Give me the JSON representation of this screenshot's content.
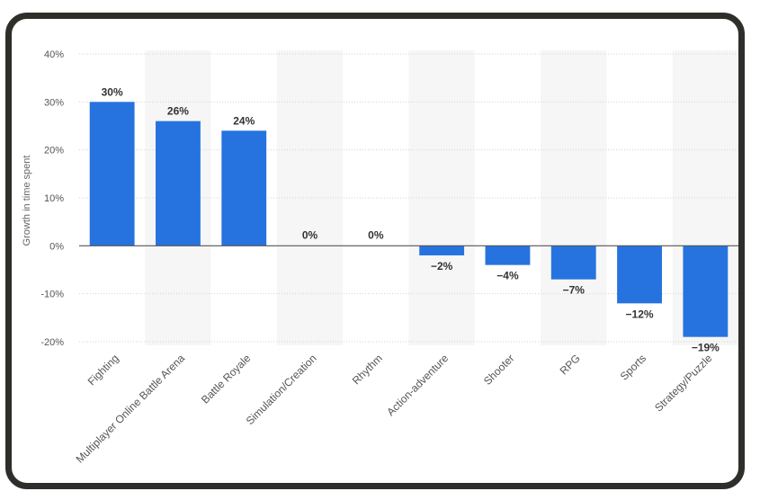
{
  "chart_data": {
    "type": "bar",
    "title": "",
    "xlabel": "",
    "ylabel": "Growth in time spent",
    "unit": "%",
    "ylim": [
      -20,
      40
    ],
    "yticks": [
      40,
      30,
      20,
      10,
      0,
      -10,
      -20
    ],
    "ytick_labels": [
      "40%",
      "30%",
      "20%",
      "10%",
      "0%",
      "-10%",
      "-20%"
    ],
    "grid": true,
    "legend": "none",
    "bar_color": "#2673df",
    "categories": [
      "Fighting",
      "Multiplayer Online Battle Arena",
      "Battle Royale",
      "Simulation/Creation",
      "Rhythm",
      "Action-adventure",
      "Shooter",
      "RPG",
      "Sports",
      "Strategy/Puzzle"
    ],
    "values": [
      30,
      26,
      24,
      0,
      0,
      -2,
      -4,
      -7,
      -12,
      -19
    ],
    "data_labels": [
      "30%",
      "26%",
      "24%",
      "0%",
      "0%",
      "−2%",
      "−4%",
      "−7%",
      "−12%",
      "−19%"
    ]
  }
}
